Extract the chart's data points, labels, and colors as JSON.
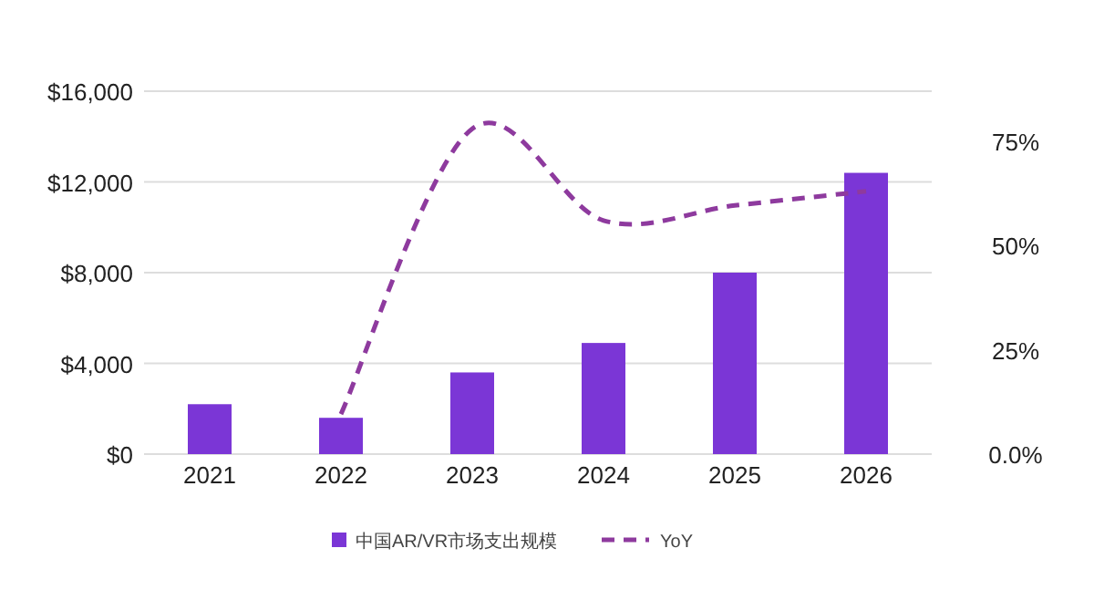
{
  "chart_data": {
    "type": "bar",
    "categories": [
      "2021",
      "2022",
      "2023",
      "2024",
      "2025",
      "2026"
    ],
    "series": [
      {
        "name": "中国AR/VR市场支出规模",
        "color": "#7b36d6",
        "values": [
          2200,
          1600,
          3600,
          4900,
          8000,
          12400
        ]
      },
      {
        "name": "YoY",
        "type": "line",
        "axis": "y2",
        "color": "#8e3a9e",
        "line_style": "dashed",
        "values": [
          null,
          9.6,
          78,
          56,
          59.6,
          63
        ]
      }
    ],
    "ylim": [
      0,
      16000
    ],
    "yticks": [
      {
        "value": 0,
        "label": "$0"
      },
      {
        "value": 4000,
        "label": "$4,000"
      },
      {
        "value": 8000,
        "label": "$8,000"
      },
      {
        "value": 12000,
        "label": "$12,000"
      },
      {
        "value": 16000,
        "label": "$16,000"
      }
    ],
    "y2lim": [
      0,
      87
    ],
    "y2ticks": [
      {
        "value": 0,
        "label": "0.0%"
      },
      {
        "value": 25,
        "label": "25%"
      },
      {
        "value": 50,
        "label": "50%"
      },
      {
        "value": 75,
        "label": "75%"
      }
    ],
    "grid": "y",
    "legend": "bottom"
  }
}
